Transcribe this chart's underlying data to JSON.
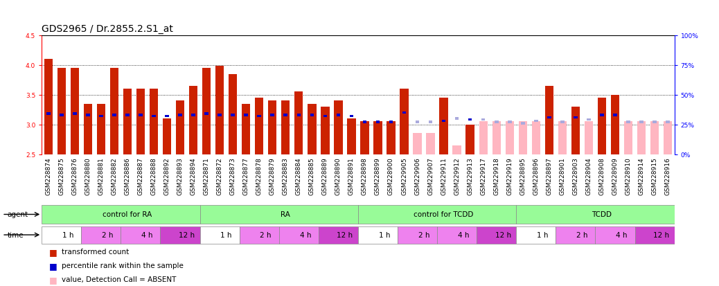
{
  "title": "GDS2965 / Dr.2855.2.S1_at",
  "ylim_left": [
    2.5,
    4.5
  ],
  "ylim_right": [
    0,
    100
  ],
  "yticks_left": [
    2.5,
    3.0,
    3.5,
    4.0,
    4.5
  ],
  "yticks_right": [
    0,
    25,
    50,
    75,
    100
  ],
  "ytick_labels_right": [
    "0%",
    "25%",
    "50%",
    "75%",
    "100%"
  ],
  "bar_baseline": 2.5,
  "samples": [
    "GSM228874",
    "GSM228875",
    "GSM228876",
    "GSM228880",
    "GSM228881",
    "GSM228882",
    "GSM228886",
    "GSM228887",
    "GSM228888",
    "GSM228892",
    "GSM228893",
    "GSM228894",
    "GSM228871",
    "GSM228872",
    "GSM228873",
    "GSM228877",
    "GSM228878",
    "GSM228879",
    "GSM228883",
    "GSM228884",
    "GSM228885",
    "GSM228889",
    "GSM228890",
    "GSM228891",
    "GSM228898",
    "GSM228899",
    "GSM228900",
    "GSM229905",
    "GSM229906",
    "GSM229907",
    "GSM229911",
    "GSM229912",
    "GSM229913",
    "GSM229917",
    "GSM229918",
    "GSM229919",
    "GSM228895",
    "GSM228896",
    "GSM228897",
    "GSM228901",
    "GSM228903",
    "GSM228904",
    "GSM228908",
    "GSM228909",
    "GSM228910",
    "GSM228914",
    "GSM228915",
    "GSM228916"
  ],
  "transformed_count": [
    4.1,
    3.95,
    3.95,
    3.35,
    3.35,
    3.95,
    3.6,
    3.6,
    3.6,
    3.1,
    3.4,
    3.65,
    3.95,
    3.98,
    3.85,
    3.35,
    3.45,
    3.4,
    3.4,
    3.55,
    3.35,
    3.3,
    3.4,
    3.1,
    3.05,
    3.05,
    3.05,
    3.6,
    2.85,
    2.85,
    3.45,
    2.65,
    3.0,
    3.05,
    3.05,
    3.05,
    3.05,
    3.05,
    3.65,
    3.05,
    3.3,
    3.05,
    3.45,
    3.5,
    3.05,
    3.05,
    3.05,
    3.05
  ],
  "percentile_rank": [
    34,
    33,
    34,
    33,
    32,
    33,
    33,
    33,
    32,
    32,
    33,
    33,
    34,
    33,
    33,
    33,
    32,
    33,
    33,
    33,
    33,
    32,
    33,
    32,
    27,
    27,
    27,
    35,
    27,
    27,
    28,
    30,
    29,
    29,
    27,
    27,
    26,
    28,
    31,
    27,
    31,
    29,
    33,
    33,
    27,
    27,
    27,
    27
  ],
  "absent": [
    false,
    false,
    false,
    false,
    false,
    false,
    false,
    false,
    false,
    false,
    false,
    false,
    false,
    false,
    false,
    false,
    false,
    false,
    false,
    false,
    false,
    false,
    false,
    false,
    false,
    false,
    false,
    false,
    true,
    true,
    false,
    true,
    false,
    true,
    true,
    true,
    true,
    true,
    false,
    true,
    false,
    true,
    false,
    false,
    true,
    true,
    true,
    true
  ],
  "agent_groups": [
    {
      "label": "control for RA",
      "start": 0,
      "end": 12,
      "color": "#98FB98"
    },
    {
      "label": "RA",
      "start": 12,
      "end": 24,
      "color": "#98FB98"
    },
    {
      "label": "control for TCDD",
      "start": 24,
      "end": 36,
      "color": "#98FB98"
    },
    {
      "label": "TCDD",
      "start": 36,
      "end": 48,
      "color": "#98FB98"
    }
  ],
  "time_groups": [
    {
      "label": "1 h",
      "start": 0,
      "end": 3,
      "color": "#FFFFFF"
    },
    {
      "label": "2 h",
      "start": 3,
      "end": 6,
      "color": "#EE82EE"
    },
    {
      "label": "4 h",
      "start": 6,
      "end": 9,
      "color": "#EE82EE"
    },
    {
      "label": "12 h",
      "start": 9,
      "end": 12,
      "color": "#EE82EE"
    },
    {
      "label": "1 h",
      "start": 12,
      "end": 15,
      "color": "#FFFFFF"
    },
    {
      "label": "2 h",
      "start": 15,
      "end": 18,
      "color": "#EE82EE"
    },
    {
      "label": "4 h",
      "start": 18,
      "end": 21,
      "color": "#EE82EE"
    },
    {
      "label": "12 h",
      "start": 21,
      "end": 24,
      "color": "#EE82EE"
    },
    {
      "label": "1 h",
      "start": 24,
      "end": 27,
      "color": "#FFFFFF"
    },
    {
      "label": "2 h",
      "start": 27,
      "end": 30,
      "color": "#EE82EE"
    },
    {
      "label": "4 h",
      "start": 30,
      "end": 33,
      "color": "#EE82EE"
    },
    {
      "label": "12 h",
      "start": 33,
      "end": 36,
      "color": "#EE82EE"
    },
    {
      "label": "1 h",
      "start": 36,
      "end": 39,
      "color": "#FFFFFF"
    },
    {
      "label": "2 h",
      "start": 39,
      "end": 42,
      "color": "#EE82EE"
    },
    {
      "label": "4 h",
      "start": 42,
      "end": 45,
      "color": "#EE82EE"
    },
    {
      "label": "12 h",
      "start": 45,
      "end": 48,
      "color": "#EE82EE"
    }
  ],
  "bar_color_present": "#CC2200",
  "bar_color_absent": "#FFB6C1",
  "rank_color_present": "#0000CC",
  "rank_color_absent": "#AAAADD",
  "title_fontsize": 10,
  "tick_fontsize": 6.5,
  "label_fontsize": 7.5
}
